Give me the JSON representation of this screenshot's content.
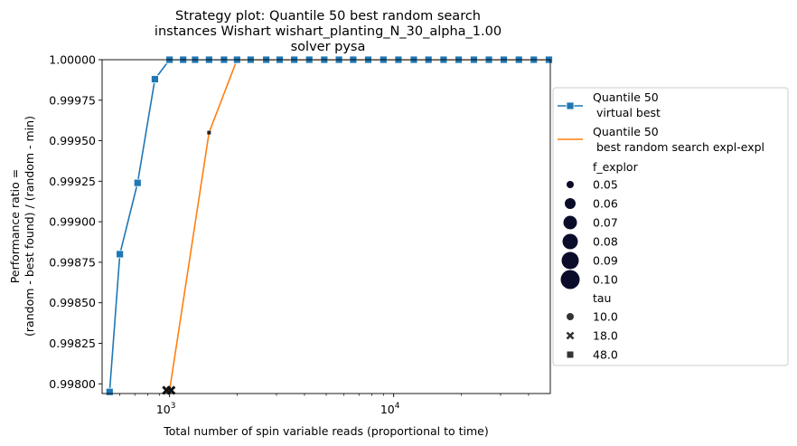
{
  "chart_data": {
    "type": "line",
    "title_lines": [
      "Strategy plot: Quantile 50 best random search",
      "instances Wishart wishart_planting_N_30_alpha_1.00",
      "solver pysa"
    ],
    "xlabel": "Total number of spin variable reads (proportional to time)",
    "ylabel_lines": [
      "Performance ratio =",
      "(random - best found) / (random - min)"
    ],
    "xscale": "log",
    "xlim": [
      500,
      50000
    ],
    "ylim": [
      0.99794,
      1.0
    ],
    "grid": false,
    "legend_position": "right, outside plot",
    "x_ticks": [
      {
        "value": 1000,
        "base": "10",
        "exp": "3"
      },
      {
        "value": 10000,
        "base": "10",
        "exp": "4"
      }
    ],
    "y_ticks": [
      {
        "value": 0.998,
        "label": "0.99800"
      },
      {
        "value": 0.99825,
        "label": "0.99825"
      },
      {
        "value": 0.9985,
        "label": "0.99850"
      },
      {
        "value": 0.99875,
        "label": "0.99875"
      },
      {
        "value": 0.999,
        "label": "0.99900"
      },
      {
        "value": 0.99925,
        "label": "0.99925"
      },
      {
        "value": 0.9995,
        "label": "0.99950"
      },
      {
        "value": 0.99975,
        "label": "0.99975"
      },
      {
        "value": 1.0,
        "label": "1.00000"
      }
    ],
    "series": [
      {
        "name": "Quantile 50\n virtual best",
        "color": "#1f77b4",
        "marker": "square",
        "x": [
          540,
          600,
          720,
          860,
          1000,
          1150,
          1300,
          1500,
          1750,
          2000,
          2300,
          2700,
          3100,
          3600,
          4200,
          4900,
          5700,
          6600,
          7700,
          9000,
          10500,
          12300,
          14300,
          16700,
          19500,
          22800,
          26600,
          31000,
          36200,
          42200,
          49300
        ],
        "y": [
          0.99795,
          0.9988,
          0.99924,
          0.99988,
          1.0,
          1.0,
          1.0,
          1.0,
          1.0,
          1.0,
          1.0,
          1.0,
          1.0,
          1.0,
          1.0,
          1.0,
          1.0,
          1.0,
          1.0,
          1.0,
          1.0,
          1.0,
          1.0,
          1.0,
          1.0,
          1.0,
          1.0,
          1.0,
          1.0,
          1.0,
          1.0
        ]
      },
      {
        "name": "Quantile 50\n best random search expl-expl",
        "color": "#ff7f0e",
        "marker": "none",
        "x": [
          1000,
          1500,
          2000,
          50000
        ],
        "y": [
          0.99796,
          0.99955,
          1.0,
          1.0
        ]
      }
    ],
    "scatter_points": [
      {
        "x": 970,
        "y": 0.99796,
        "marker": "x",
        "f_explor": 0.06
      },
      {
        "x": 1015,
        "y": 0.99796,
        "marker": "x",
        "f_explor": 0.06
      },
      {
        "x": 1500,
        "y": 0.99955,
        "marker": "square",
        "f_explor": 0.05
      }
    ],
    "legend": {
      "size_title": "f_explor",
      "sizes": [
        {
          "label": "0.05",
          "radius": 4
        },
        {
          "label": "0.06",
          "radius": 6
        },
        {
          "label": "0.07",
          "radius": 7.5
        },
        {
          "label": "0.08",
          "radius": 8.5
        },
        {
          "label": "0.09",
          "radius": 9.5
        },
        {
          "label": "0.10",
          "radius": 10.5
        }
      ],
      "style_title": "tau",
      "styles": [
        {
          "label": "10.0",
          "marker": "circle"
        },
        {
          "label": "18.0",
          "marker": "x"
        },
        {
          "label": "48.0",
          "marker": "square"
        }
      ]
    }
  }
}
